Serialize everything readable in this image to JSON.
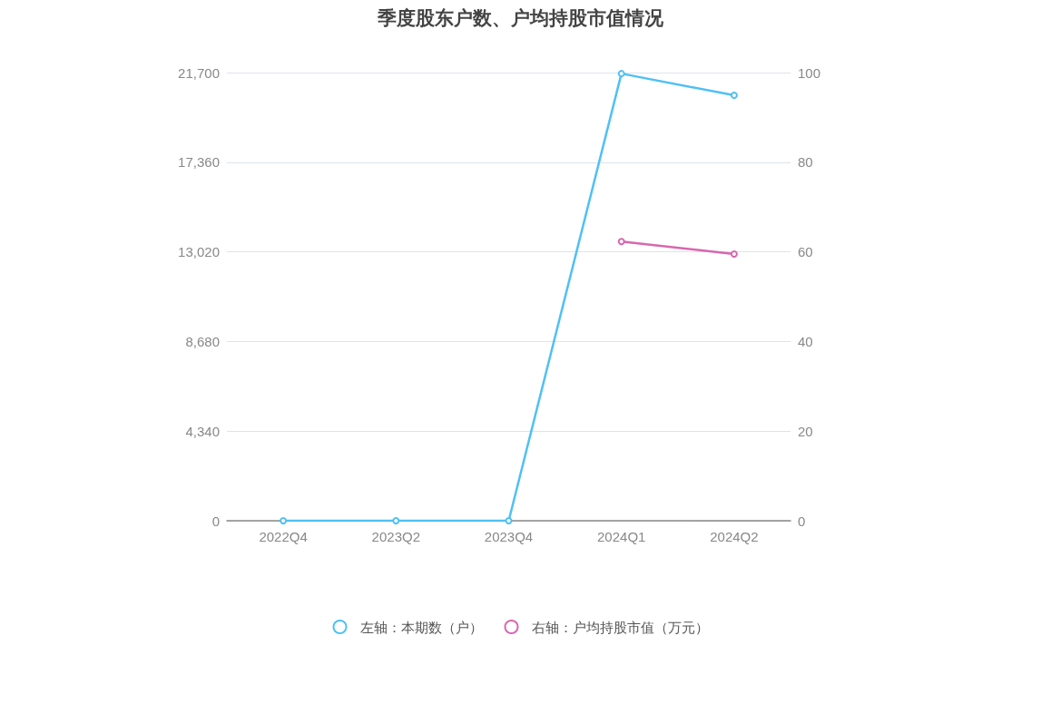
{
  "chart_data": {
    "type": "line",
    "title": "季度股东户数、户均持股市值情况",
    "categories": [
      "2022Q4",
      "2023Q2",
      "2023Q4",
      "2024Q1",
      "2024Q2"
    ],
    "series": [
      {
        "name": "左轴：本期数（户）",
        "color": "#4fc0f5",
        "values": [
          0,
          0,
          0,
          21650,
          20600
        ]
      },
      {
        "name": "右轴：户均持股市值（万元）",
        "color": "#d867ae",
        "axis": "y2",
        "values": [
          null,
          null,
          null,
          62.3,
          59.5
        ]
      }
    ],
    "ylim": [
      0,
      21700
    ],
    "yticks": [
      0,
      {
        "value": 4340,
        "label": "4,340"
      },
      {
        "value": 8680,
        "label": "8,680"
      },
      {
        "value": 13020,
        "label": "13,020"
      },
      {
        "value": 17360,
        "label": "17,360"
      },
      {
        "value": 21700,
        "label": "21,700"
      }
    ],
    "y2lim": [
      0,
      100
    ],
    "y2ticks": [
      0,
      20,
      40,
      60,
      80,
      100
    ],
    "grid": "y",
    "legend": "bottom",
    "marker": "circle",
    "line_style": "solid"
  }
}
